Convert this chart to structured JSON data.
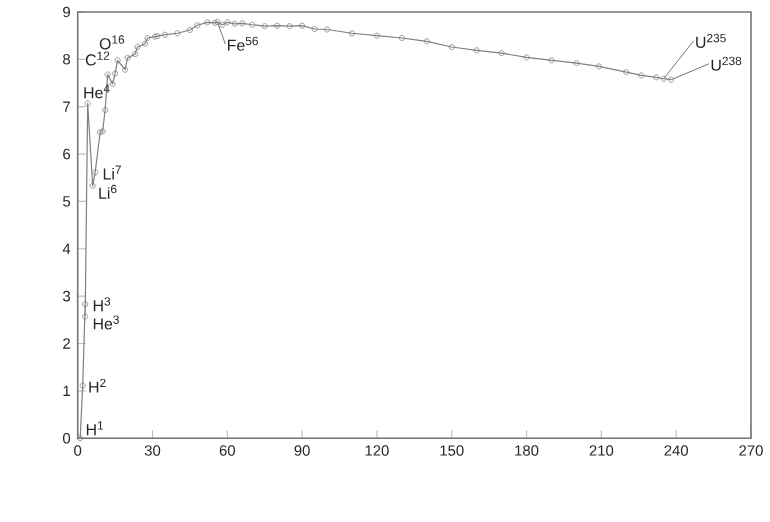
{
  "chart_data": {
    "type": "line",
    "marker": "circle",
    "xlim": [
      0,
      270
    ],
    "ylim": [
      0,
      9
    ],
    "xticks": [
      0,
      30,
      60,
      90,
      120,
      150,
      180,
      210,
      240,
      270
    ],
    "yticks": [
      0,
      1,
      2,
      3,
      4,
      5,
      6,
      7,
      8,
      9
    ],
    "series": [
      {
        "color": "#7f7f7f",
        "x": [
          1,
          2,
          3,
          3,
          4,
          6,
          7,
          9,
          10,
          11,
          12,
          14,
          15,
          16,
          19,
          20,
          23,
          24,
          27,
          28,
          31,
          32,
          35,
          40,
          45,
          48,
          52,
          55,
          56,
          58,
          60,
          63,
          66,
          70,
          75,
          80,
          85,
          90,
          95,
          100,
          110,
          120,
          130,
          140,
          150,
          160,
          170,
          180,
          190,
          200,
          209,
          220,
          226,
          232,
          235,
          238
        ],
        "values": [
          0,
          1.11,
          2.83,
          2.57,
          7.07,
          5.33,
          5.61,
          6.46,
          6.48,
          6.93,
          7.68,
          7.48,
          7.7,
          7.98,
          7.78,
          8.03,
          8.11,
          8.26,
          8.33,
          8.45,
          8.48,
          8.49,
          8.52,
          8.55,
          8.62,
          8.72,
          8.78,
          8.77,
          8.79,
          8.73,
          8.78,
          8.75,
          8.76,
          8.73,
          8.7,
          8.71,
          8.7,
          8.71,
          8.64,
          8.63,
          8.55,
          8.5,
          8.45,
          8.38,
          8.26,
          8.19,
          8.13,
          8.04,
          7.98,
          7.92,
          7.85,
          7.73,
          7.66,
          7.62,
          7.59,
          7.57
        ]
      }
    ],
    "annotations": [
      {
        "text": "H$^{1}$",
        "x": 1,
        "y": 0
      },
      {
        "text": "H$^{2}$",
        "x": 2,
        "y": 1.11
      },
      {
        "text": "H$^{3}$",
        "x": 3,
        "y": 2.83
      },
      {
        "text": "He$^{3}$",
        "x": 3,
        "y": 2.57
      },
      {
        "text": "He$^{4}$",
        "x": 4,
        "y": 7.07
      },
      {
        "text": "Li$^{6}$",
        "x": 6,
        "y": 5.33
      },
      {
        "text": "Li$^{7}$",
        "x": 7,
        "y": 5.61
      },
      {
        "text": "C$^{12}$",
        "x": 12,
        "y": 7.68
      },
      {
        "text": "O$^{16}$",
        "x": 16,
        "y": 7.98
      },
      {
        "text": "Fe$^{56}$",
        "x": 56,
        "y": 8.79
      },
      {
        "text": "U$^{235}$",
        "x": 235,
        "y": 7.59
      },
      {
        "text": "U$^{238}$",
        "x": 238,
        "y": 7.57
      }
    ]
  }
}
